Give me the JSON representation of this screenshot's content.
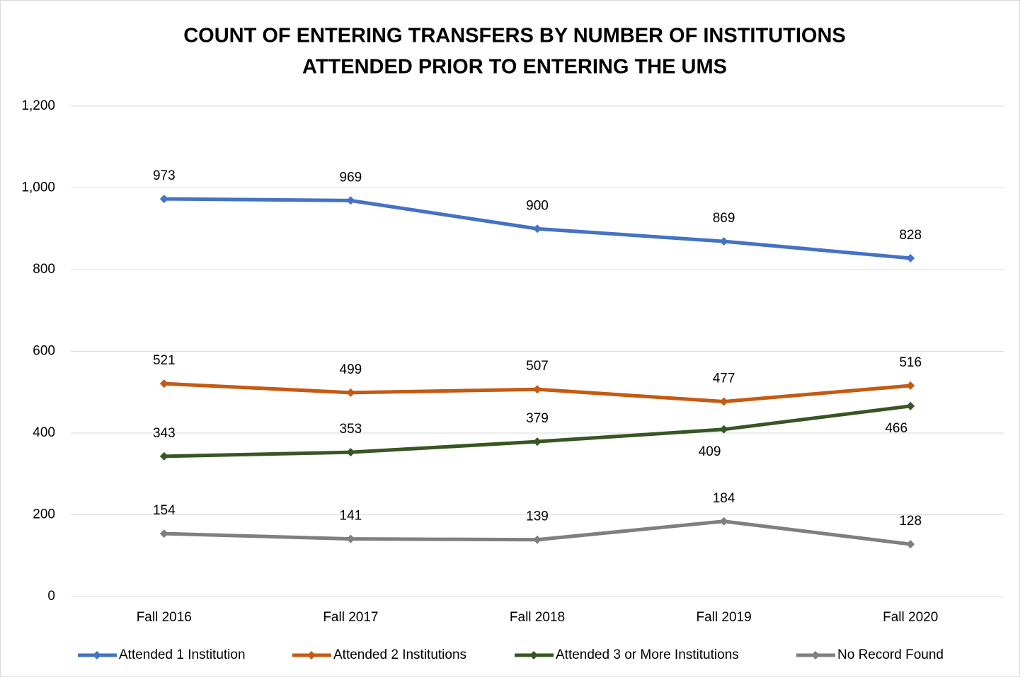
{
  "chart_data": {
    "type": "line",
    "title": [
      "COUNT OF ENTERING TRANSFERS BY NUMBER OF INSTITUTIONS",
      "ATTENDED PRIOR TO ENTERING THE UMS"
    ],
    "categories": [
      "Fall 2016",
      "Fall 2017",
      "Fall 2018",
      "Fall 2019",
      "Fall 2020"
    ],
    "series": [
      {
        "name": "Attended 1 Institution",
        "color": "#4472c4",
        "values": [
          973,
          969,
          900,
          869,
          828
        ]
      },
      {
        "name": "Attended 2 Institutions",
        "color": "#c55a11",
        "values": [
          521,
          499,
          507,
          477,
          516
        ]
      },
      {
        "name": "Attended 3 or More Institutions",
        "color": "#375623",
        "values": [
          343,
          353,
          379,
          409,
          466
        ]
      },
      {
        "name": "No Record Found",
        "color": "#7f7f7f",
        "values": [
          154,
          141,
          139,
          184,
          128
        ]
      }
    ],
    "ylim": [
      0,
      1200
    ],
    "yticks": [
      0,
      200,
      400,
      600,
      800,
      {
        "value": 1000,
        "label": "1,000"
      },
      {
        "value": 1200,
        "label": "1,200"
      }
    ],
    "grid": true,
    "legend": "bottom"
  }
}
